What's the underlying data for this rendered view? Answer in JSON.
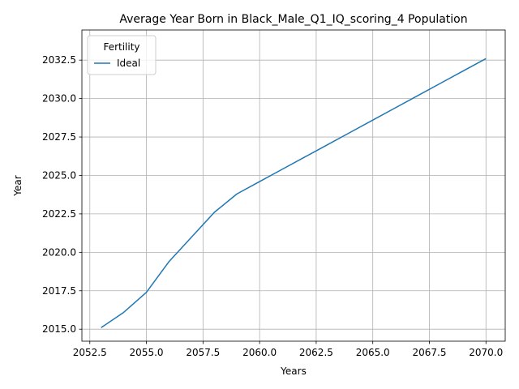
{
  "chart_data": {
    "type": "line",
    "title": "Average Year Born in Black_Male_Q1_IQ_scoring_4 Population",
    "xlabel": "Years",
    "ylabel": "Year",
    "xlim": [
      2052.15,
      2070.85
    ],
    "ylim": [
      2014.22,
      2034.46
    ],
    "x_ticks": [
      2052.5,
      2055.0,
      2057.5,
      2060.0,
      2062.5,
      2065.0,
      2067.5,
      2070.0
    ],
    "x_tick_labels": [
      "2052.5",
      "2055.0",
      "2057.5",
      "2060.0",
      "2062.5",
      "2065.0",
      "2067.5",
      "2070.0"
    ],
    "y_ticks": [
      2015.0,
      2017.5,
      2020.0,
      2022.5,
      2025.0,
      2027.5,
      2030.0,
      2032.5
    ],
    "y_tick_labels": [
      "2015.0",
      "2017.5",
      "2020.0",
      "2022.5",
      "2025.0",
      "2027.5",
      "2030.0",
      "2032.5"
    ],
    "grid": true,
    "legend": {
      "title": "Fertility",
      "position": "top-left"
    },
    "series": [
      {
        "name": "Ideal",
        "color": "#1f77b4",
        "x": [
          2053,
          2054,
          2055,
          2056,
          2057,
          2058,
          2059,
          2060,
          2061,
          2062,
          2063,
          2064,
          2065,
          2066,
          2067,
          2068,
          2069,
          2070
        ],
        "y": [
          2015.1,
          2016.1,
          2017.4,
          2019.4,
          2021.0,
          2022.6,
          2023.8,
          2024.6,
          2025.4,
          2026.2,
          2027.0,
          2027.8,
          2028.6,
          2029.4,
          2030.2,
          2031.0,
          2031.8,
          2032.6
        ]
      }
    ]
  }
}
